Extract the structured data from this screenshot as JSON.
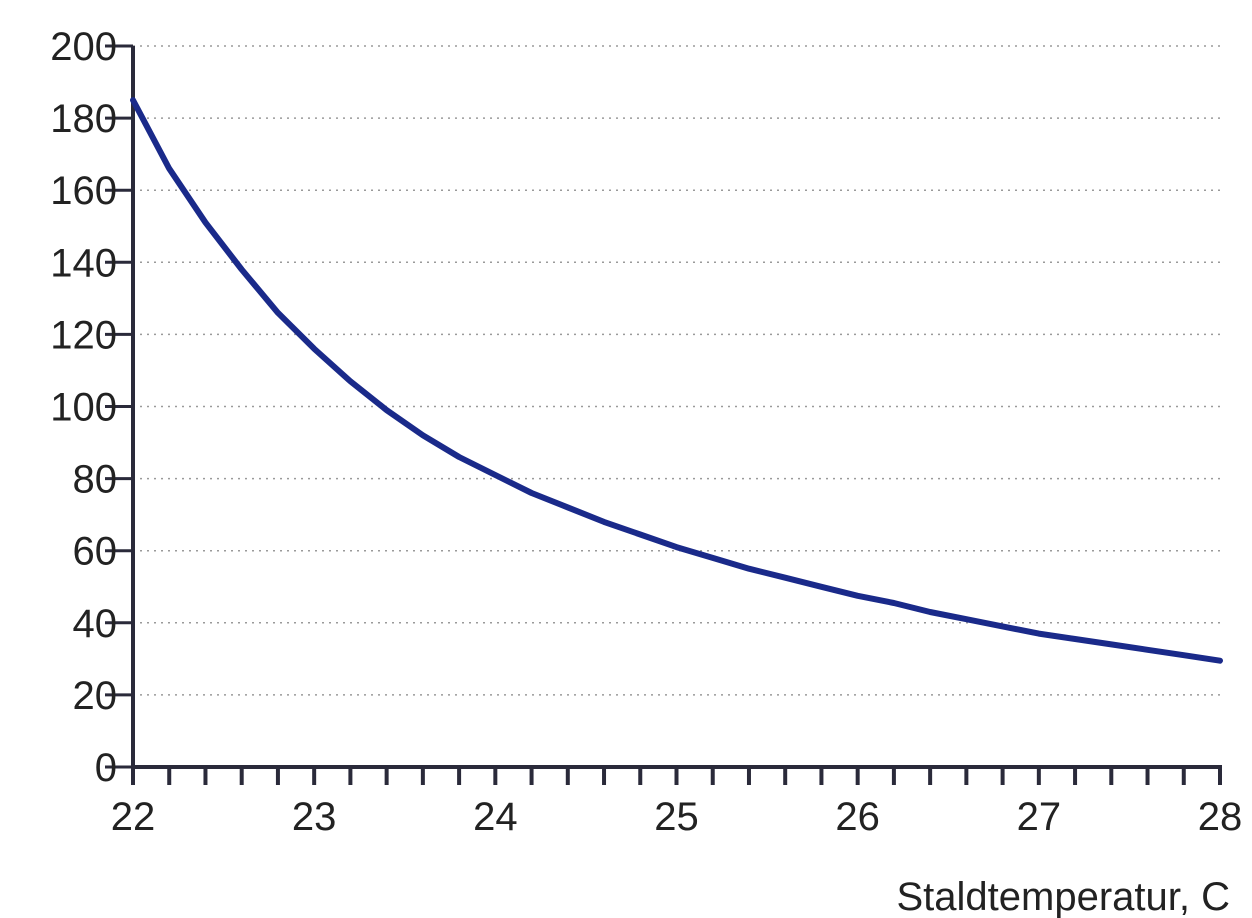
{
  "chart_data": {
    "type": "line",
    "title": "",
    "xlabel": "Staldtemperatur, C",
    "ylabel": "",
    "xlim": [
      22,
      28
    ],
    "ylim": [
      0,
      200
    ],
    "x_ticks": [
      22,
      23,
      24,
      25,
      26,
      27,
      28
    ],
    "x_minor_step": 0.2,
    "y_ticks": [
      0,
      20,
      40,
      60,
      80,
      100,
      120,
      140,
      160,
      180,
      200
    ],
    "grid": "horizontal dotted",
    "series": [
      {
        "color": "#1a2a8a",
        "x": [
          22.0,
          22.2,
          22.4,
          22.6,
          22.8,
          23.0,
          23.2,
          23.4,
          23.6,
          23.8,
          24.0,
          24.2,
          24.4,
          24.6,
          24.8,
          25.0,
          25.2,
          25.4,
          25.6,
          25.8,
          26.0,
          26.2,
          26.4,
          26.6,
          26.8,
          27.0,
          27.2,
          27.4,
          27.6,
          27.8,
          28.0
        ],
        "y": [
          185,
          166,
          151,
          138,
          126,
          116,
          107,
          99,
          92,
          86,
          81,
          76,
          72,
          68,
          64.5,
          61,
          58,
          55,
          52.5,
          50,
          47.5,
          45.5,
          43,
          41,
          39,
          37,
          35.5,
          34,
          32.5,
          31,
          29.5
        ]
      }
    ]
  }
}
